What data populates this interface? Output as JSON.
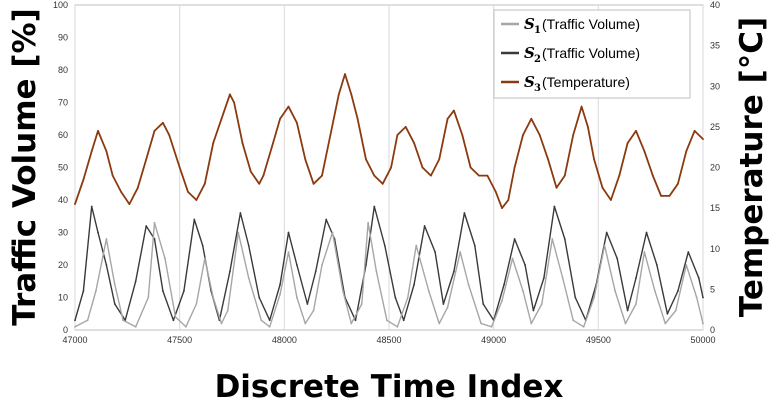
{
  "chart_data": {
    "type": "line",
    "xlabel": "Discrete Time Index",
    "ylabel_left": "Traffic Volume [%]",
    "ylabel_right": "Temperature [°C]",
    "xlim": [
      47000,
      50000
    ],
    "ylim_left": [
      0,
      100
    ],
    "ylim_right": [
      0,
      40
    ],
    "x_ticks": [
      "47000",
      "47500",
      "48000",
      "48500",
      "49000",
      "49500",
      "50000"
    ],
    "y_left_ticks": [
      "0",
      "10",
      "20",
      "30",
      "40",
      "50",
      "60",
      "70",
      "80",
      "90",
      "100"
    ],
    "y_right_ticks": [
      "0",
      "5",
      "10",
      "15",
      "20",
      "25",
      "30",
      "35",
      "40"
    ],
    "grid": "vertical",
    "legend_position": "top-right",
    "series": [
      {
        "name": "(Traffic Volume)",
        "symbol": "S",
        "subscript": "1",
        "axis": "left",
        "color": "#a6a6a6",
        "x": [
          47000,
          47060,
          47100,
          47150,
          47190,
          47230,
          47290,
          47350,
          47380,
          47430,
          47480,
          47530,
          47580,
          47620,
          47660,
          47700,
          47730,
          47780,
          47830,
          47890,
          47930,
          47980,
          48020,
          48060,
          48100,
          48140,
          48180,
          48230,
          48280,
          48320,
          48370,
          48400,
          48440,
          48490,
          48540,
          48590,
          48630,
          48690,
          48740,
          48780,
          48840,
          48880,
          48940,
          48990,
          49040,
          49090,
          49140,
          49180,
          49230,
          49280,
          49330,
          49380,
          49430,
          49480,
          49530,
          49580,
          49630,
          49680,
          49720,
          49770,
          49820,
          49870,
          49920,
          49970,
          50000
        ],
        "values": [
          1,
          3,
          12,
          28,
          14,
          3,
          1,
          10,
          33,
          22,
          4,
          1,
          8,
          22,
          10,
          2,
          6,
          30,
          16,
          3,
          1,
          11,
          24,
          10,
          2,
          6,
          20,
          30,
          12,
          2,
          8,
          33,
          18,
          3,
          1,
          10,
          26,
          12,
          2,
          7,
          24,
          14,
          2,
          1,
          9,
          22,
          12,
          2,
          8,
          28,
          16,
          3,
          1,
          10,
          26,
          12,
          2,
          8,
          24,
          12,
          2,
          6,
          20,
          10,
          2
        ]
      },
      {
        "name": "(Traffic Volume)",
        "symbol": "S",
        "subscript": "2",
        "axis": "left",
        "color": "#3a3a3a",
        "x": [
          47000,
          47040,
          47080,
          47110,
          47150,
          47190,
          47240,
          47290,
          47340,
          47380,
          47420,
          47470,
          47520,
          47570,
          47610,
          47650,
          47690,
          47740,
          47790,
          47830,
          47880,
          47930,
          47980,
          48020,
          48060,
          48110,
          48150,
          48200,
          48240,
          48290,
          48340,
          48390,
          48430,
          48480,
          48530,
          48570,
          48620,
          48670,
          48720,
          48760,
          48810,
          48860,
          48910,
          48950,
          49000,
          49050,
          49100,
          49150,
          49190,
          49240,
          49290,
          49340,
          49390,
          49440,
          49490,
          49540,
          49590,
          49640,
          49680,
          49730,
          49780,
          49830,
          49880,
          49930,
          49980,
          50000
        ],
        "values": [
          3,
          12,
          38,
          30,
          20,
          8,
          3,
          15,
          32,
          28,
          12,
          3,
          12,
          34,
          26,
          12,
          3,
          18,
          36,
          26,
          10,
          3,
          14,
          30,
          20,
          8,
          18,
          34,
          28,
          10,
          3,
          20,
          38,
          26,
          10,
          3,
          14,
          32,
          24,
          8,
          18,
          36,
          26,
          8,
          3,
          14,
          28,
          20,
          6,
          16,
          38,
          28,
          10,
          3,
          14,
          30,
          22,
          6,
          16,
          30,
          20,
          5,
          12,
          24,
          16,
          10
        ]
      },
      {
        "name": "(Temperature)",
        "symbol": "S",
        "subscript": "3",
        "axis": "right",
        "color": "#8b3a0f",
        "x": [
          47000,
          47040,
          47080,
          47110,
          47150,
          47180,
          47220,
          47260,
          47300,
          47340,
          47380,
          47420,
          47450,
          47500,
          47540,
          47580,
          47620,
          47660,
          47700,
          47740,
          47760,
          47800,
          47840,
          47880,
          47900,
          47940,
          47980,
          48020,
          48060,
          48100,
          48140,
          48180,
          48220,
          48260,
          48290,
          48320,
          48350,
          48390,
          48430,
          48470,
          48510,
          48540,
          48580,
          48620,
          48660,
          48700,
          48740,
          48780,
          48810,
          48850,
          48890,
          48930,
          48970,
          49010,
          49040,
          49070,
          49100,
          49140,
          49180,
          49220,
          49260,
          49300,
          49340,
          49380,
          49420,
          49450,
          49480,
          49520,
          49560,
          49600,
          49640,
          49680,
          49720,
          49760,
          49800,
          49840,
          49880,
          49920,
          49960,
          50000
        ],
        "values": [
          15.5,
          18.5,
          22,
          24.5,
          22,
          19,
          17,
          15.5,
          17.5,
          21,
          24.5,
          25.5,
          24,
          20,
          17,
          16,
          18,
          23,
          26,
          29,
          28,
          23,
          19.5,
          18,
          19,
          22.5,
          26,
          27.5,
          25.5,
          21,
          18,
          19,
          24,
          29,
          31.5,
          29,
          26,
          21,
          19,
          18,
          20,
          24,
          25,
          23,
          20,
          19,
          21,
          26,
          27,
          24,
          20,
          19,
          19,
          17,
          15,
          16,
          20,
          24,
          26,
          24,
          21,
          17.5,
          19,
          24,
          27.5,
          25,
          21,
          17.5,
          16,
          19,
          23,
          24.5,
          22,
          19,
          16.5,
          16.5,
          18,
          22,
          24.5,
          23.5
        ]
      }
    ]
  }
}
